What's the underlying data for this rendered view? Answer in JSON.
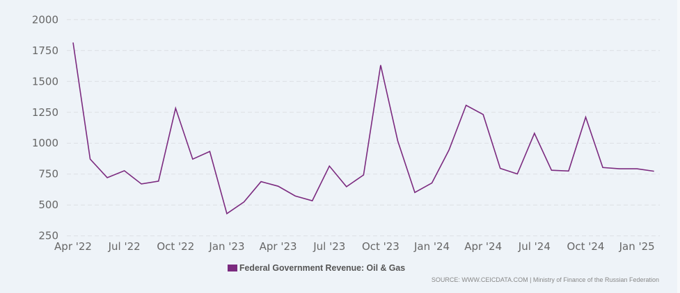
{
  "colors": {
    "series": "#7b2a7f",
    "grid": "#dcdfe3",
    "background": "#eef3f8"
  },
  "chart_data": {
    "type": "line",
    "title": "",
    "xlabel": "",
    "ylabel": "",
    "ylim": [
      250,
      2000
    ],
    "yticks": [
      250,
      500,
      750,
      1000,
      1250,
      1500,
      1750,
      2000
    ],
    "grid": true,
    "legend_position": "bottom",
    "x": [
      "Apr '22",
      "May '22",
      "Jun '22",
      "Jul '22",
      "Aug '22",
      "Sep '22",
      "Oct '22",
      "Nov '22",
      "Dec '22",
      "Jan '23",
      "Feb '23",
      "Mar '23",
      "Apr '23",
      "May '23",
      "Jun '23",
      "Jul '23",
      "Aug '23",
      "Sep '23",
      "Oct '23",
      "Nov '23",
      "Dec '23",
      "Jan '24",
      "Feb '24",
      "Mar '24",
      "Apr '24",
      "May '24",
      "Jun '24",
      "Jul '24",
      "Aug '24",
      "Sep '24",
      "Oct '24",
      "Nov '24",
      "Dec '24",
      "Jan '25",
      "Feb '25"
    ],
    "xtick_labels": [
      {
        "index": 0,
        "label": "Apr '22"
      },
      {
        "index": 3,
        "label": "Jul '22"
      },
      {
        "index": 6,
        "label": "Oct '22"
      },
      {
        "index": 9,
        "label": "Jan '23"
      },
      {
        "index": 12,
        "label": "Apr '23"
      },
      {
        "index": 15,
        "label": "Jul '23"
      },
      {
        "index": 18,
        "label": "Oct '23"
      },
      {
        "index": 21,
        "label": "Jan '24"
      },
      {
        "index": 24,
        "label": "Apr '24"
      },
      {
        "index": 27,
        "label": "Jul '24"
      },
      {
        "index": 30,
        "label": "Oct '24"
      },
      {
        "index": 33,
        "label": "Jan '25"
      }
    ],
    "series": [
      {
        "name": "Federal Government Revenue: Oil & Gas",
        "values": [
          1815,
          871,
          721,
          777,
          670,
          693,
          1283,
          871,
          933,
          430,
          524,
          689,
          652,
          573,
          534,
          815,
          648,
          743,
          1632,
          1019,
          601,
          678,
          945,
          1307,
          1232,
          796,
          751,
          1080,
          781,
          775,
          1211,
          803,
          793,
          793,
          773
        ]
      }
    ]
  },
  "source": "SOURCE: WWW.CEICDATA.COM | Ministry of Finance of the Russian Federation"
}
